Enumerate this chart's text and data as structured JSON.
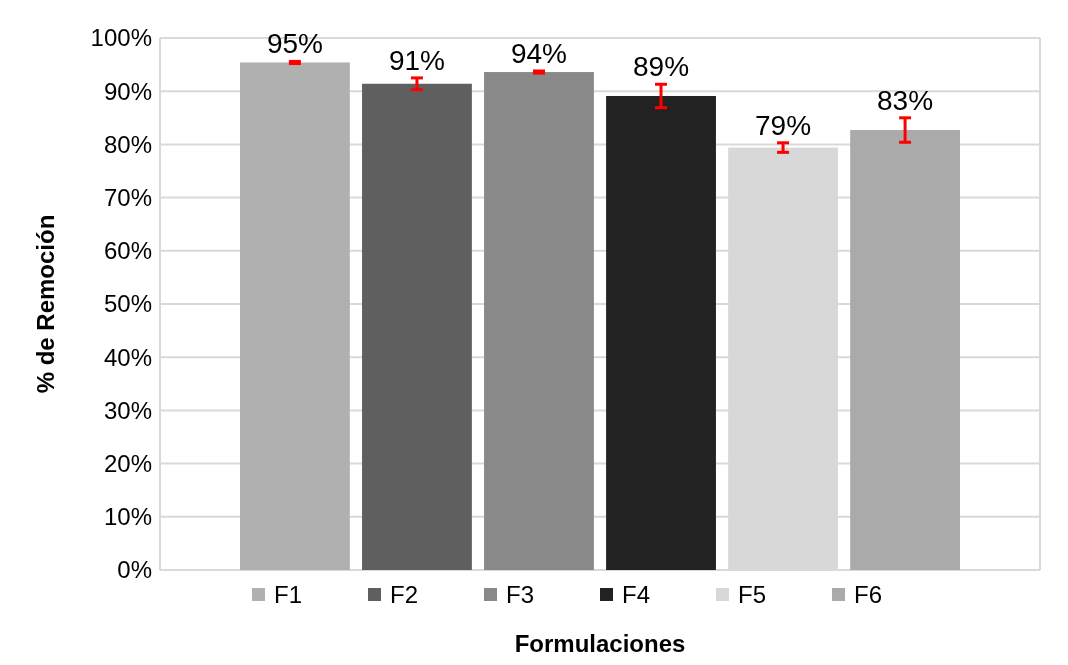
{
  "chart_data": {
    "type": "bar",
    "xlabel": "Formulaciones",
    "ylabel": "% de Remoción",
    "categories": [
      null
    ],
    "series": [
      {
        "name": "F1",
        "color": "#b0b0b0",
        "values": [
          95.4
        ],
        "errors": [
          0.2
        ],
        "value_labels": [
          "95%"
        ]
      },
      {
        "name": "F2",
        "color": "#5f5f5f",
        "values": [
          91.4
        ],
        "errors": [
          1.1
        ],
        "value_labels": [
          "91%"
        ]
      },
      {
        "name": "F3",
        "color": "#898989",
        "values": [
          93.6
        ],
        "errors": [
          0.2
        ],
        "value_labels": [
          "94%"
        ]
      },
      {
        "name": "F4",
        "color": "#222222",
        "values": [
          89.1
        ],
        "errors": [
          2.2
        ],
        "value_labels": [
          "89%"
        ]
      },
      {
        "name": "F5",
        "color": "#d8d8d8",
        "values": [
          79.4
        ],
        "errors": [
          0.9
        ],
        "value_labels": [
          "79%"
        ]
      },
      {
        "name": "F6",
        "color": "#aaaaaa",
        "values": [
          82.7
        ],
        "errors": [
          2.3
        ],
        "value_labels": [
          "83%"
        ]
      }
    ],
    "ylim": [
      0,
      100
    ],
    "yticks": [
      {
        "value": 0,
        "label": "0%"
      },
      {
        "value": 10,
        "label": "10%"
      },
      {
        "value": 20,
        "label": "20%"
      },
      {
        "value": 30,
        "label": "30%"
      },
      {
        "value": 40,
        "label": "40%"
      },
      {
        "value": 50,
        "label": "50%"
      },
      {
        "value": 60,
        "label": "60%"
      },
      {
        "value": 70,
        "label": "70%"
      },
      {
        "value": 80,
        "label": "80%"
      },
      {
        "value": 90,
        "label": "90%"
      },
      {
        "value": 100,
        "label": "100%"
      }
    ],
    "grid": "y",
    "legend": "bottom"
  }
}
